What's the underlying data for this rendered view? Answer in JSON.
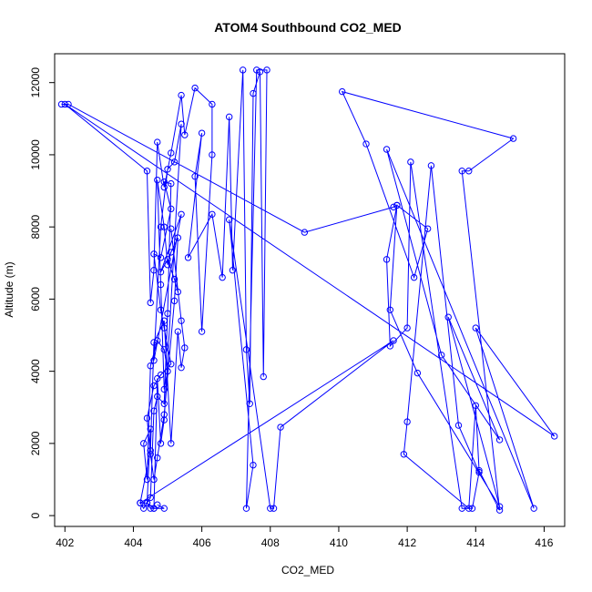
{
  "chart_data": {
    "type": "line",
    "title": "ATOM4 Southbound CO2_MED",
    "xlabel": "CO2_MED",
    "ylabel": "Altitude (m)",
    "xlim": [
      401.7,
      416.6
    ],
    "ylim": [
      -300,
      12800
    ],
    "xticks": [
      402,
      404,
      406,
      408,
      410,
      412,
      414,
      416
    ],
    "yticks": [
      0,
      2000,
      4000,
      6000,
      8000,
      10000,
      12000
    ],
    "grid": false,
    "marker": "open-circle",
    "line_color": "#0000ff",
    "series": [
      {
        "points": [
          [
            401.9,
            11400
          ],
          [
            402.1,
            11400
          ],
          [
            409.0,
            7850
          ],
          [
            411.6,
            8550
          ],
          [
            411.7,
            8600
          ],
          [
            411.4,
            7100
          ],
          [
            411.5,
            4700
          ],
          [
            412.0,
            5200
          ],
          [
            412.1,
            9800
          ],
          [
            413.6,
            200
          ],
          [
            413.9,
            200
          ],
          [
            414.1,
            1200
          ],
          [
            413.5,
            2500
          ],
          [
            412.7,
            9700
          ],
          [
            412.0,
            2600
          ],
          [
            411.9,
            1700
          ],
          [
            413.8,
            200
          ],
          [
            414.0,
            3050
          ],
          [
            414.1,
            1250
          ],
          [
            414.7,
            150
          ],
          [
            413.6,
            9550
          ],
          [
            413.8,
            9550
          ],
          [
            415.1,
            10450
          ],
          [
            410.1,
            11750
          ],
          [
            410.8,
            10300
          ],
          [
            412.2,
            6600
          ],
          [
            412.6,
            7950
          ],
          [
            411.7,
            8600
          ],
          [
            411.5,
            5700
          ],
          [
            412.3,
            3950
          ],
          [
            414.7,
            250
          ],
          [
            413.2,
            5500
          ],
          [
            414.7,
            2100
          ],
          [
            413.0,
            4450
          ],
          [
            411.4,
            10150
          ],
          [
            415.7,
            200
          ],
          [
            414.0,
            5200
          ],
          [
            416.3,
            2200
          ],
          [
            402.0,
            11400
          ],
          [
            404.4,
            9550
          ],
          [
            404.5,
            5900
          ],
          [
            404.6,
            6800
          ],
          [
            404.7,
            10350
          ],
          [
            404.9,
            9100
          ],
          [
            405.1,
            10050
          ],
          [
            405.4,
            11650
          ],
          [
            405.5,
            10550
          ],
          [
            405.8,
            11850
          ],
          [
            406.3,
            11400
          ],
          [
            406.3,
            10000
          ],
          [
            406.0,
            5100
          ],
          [
            405.8,
            9400
          ],
          [
            406.0,
            10600
          ],
          [
            405.6,
            7150
          ],
          [
            406.3,
            8350
          ],
          [
            406.6,
            6600
          ],
          [
            406.8,
            11050
          ],
          [
            406.9,
            6800
          ],
          [
            407.2,
            12350
          ],
          [
            407.3,
            4600
          ],
          [
            407.4,
            3100
          ],
          [
            407.5,
            11700
          ],
          [
            407.7,
            12300
          ],
          [
            407.8,
            3850
          ],
          [
            407.9,
            12350
          ],
          [
            407.6,
            12350
          ],
          [
            407.3,
            200
          ],
          [
            407.5,
            1400
          ],
          [
            406.8,
            8200
          ],
          [
            408.0,
            200
          ],
          [
            408.1,
            200
          ],
          [
            408.3,
            2450
          ],
          [
            411.6,
            4850
          ],
          [
            404.2,
            350
          ],
          [
            404.5,
            1800
          ],
          [
            404.6,
            4800
          ],
          [
            404.9,
            5400
          ],
          [
            405.1,
            2000
          ],
          [
            405.3,
            5100
          ],
          [
            405.4,
            4100
          ],
          [
            405.5,
            4650
          ],
          [
            405.4,
            5400
          ],
          [
            405.1,
            7950
          ],
          [
            405.3,
            6200
          ],
          [
            405.2,
            6550
          ],
          [
            405.0,
            7100
          ],
          [
            404.8,
            6750
          ],
          [
            405.4,
            8350
          ],
          [
            404.6,
            4300
          ],
          [
            404.8,
            8000
          ],
          [
            405.0,
            9600
          ],
          [
            405.2,
            9800
          ],
          [
            405.4,
            10850
          ],
          [
            404.9,
            2650
          ],
          [
            404.8,
            2000
          ],
          [
            404.7,
            3800
          ],
          [
            404.6,
            200
          ],
          [
            404.4,
            350
          ],
          [
            404.5,
            2400
          ],
          [
            404.3,
            2000
          ],
          [
            404.4,
            1000
          ],
          [
            404.5,
            4150
          ],
          [
            404.7,
            4850
          ],
          [
            404.9,
            4600
          ],
          [
            405.0,
            4000
          ],
          [
            404.9,
            3500
          ],
          [
            404.8,
            6400
          ],
          [
            404.7,
            9300
          ],
          [
            404.9,
            8000
          ],
          [
            405.0,
            6950
          ],
          [
            405.1,
            7300
          ],
          [
            405.3,
            7700
          ],
          [
            405.2,
            5950
          ],
          [
            404.9,
            2800
          ],
          [
            404.7,
            1600
          ],
          [
            404.6,
            1000
          ],
          [
            404.5,
            1700
          ],
          [
            404.4,
            2700
          ],
          [
            404.6,
            3600
          ],
          [
            404.8,
            3900
          ],
          [
            405.1,
            4200
          ],
          [
            404.9,
            5200
          ],
          [
            404.8,
            5700
          ],
          [
            404.6,
            7250
          ],
          [
            404.8,
            7150
          ],
          [
            405.1,
            8500
          ],
          [
            404.9,
            9250
          ],
          [
            405.1,
            9200
          ],
          [
            405.0,
            5600
          ],
          [
            404.9,
            3100
          ],
          [
            404.7,
            3300
          ],
          [
            404.6,
            2900
          ],
          [
            404.5,
            500
          ],
          [
            404.3,
            200
          ],
          [
            404.2,
            350
          ],
          [
            404.4,
            350
          ],
          [
            404.5,
            200
          ],
          [
            404.6,
            200
          ],
          [
            404.9,
            200
          ],
          [
            404.7,
            300
          ]
        ]
      }
    ]
  }
}
